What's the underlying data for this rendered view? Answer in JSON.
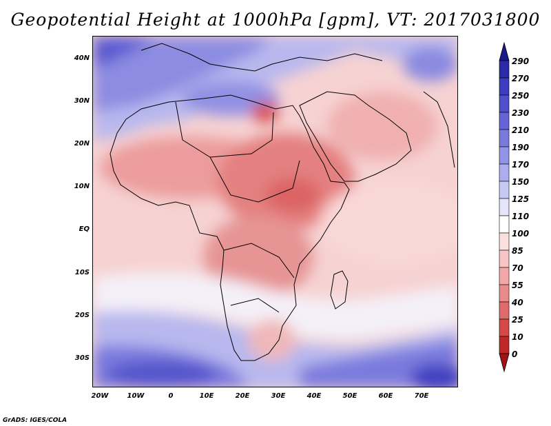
{
  "title": "Geopotential Height at 1000hPa [gpm], VT: 2017031800",
  "footer": "GrADS: IGES/COLA",
  "map": {
    "region": "Africa and Arabian Peninsula",
    "lat_labels": [
      "40N",
      "30N",
      "20N",
      "10N",
      "EQ",
      "10S",
      "20S",
      "30S"
    ],
    "lon_labels": [
      "20W",
      "10W",
      "0",
      "10E",
      "20E",
      "30E",
      "40E",
      "50E",
      "60E",
      "70E"
    ]
  },
  "colorbar": {
    "labels": [
      "290",
      "270",
      "250",
      "230",
      "210",
      "190",
      "170",
      "150",
      "125",
      "110",
      "100",
      "85",
      "70",
      "55",
      "40",
      "25",
      "10",
      "0"
    ],
    "colors": [
      "#1a1a8c",
      "#2b2ba8",
      "#3c3cbe",
      "#4f4fcc",
      "#6464d6",
      "#7a7ade",
      "#9292e6",
      "#acacee",
      "#c8c8f4",
      "#e4e4fa",
      "#ffffff",
      "#fce0e0",
      "#f8c4c4",
      "#f2a8a8",
      "#ea8a8a",
      "#e06a6a",
      "#d44848",
      "#c02828",
      "#a01414"
    ]
  }
}
